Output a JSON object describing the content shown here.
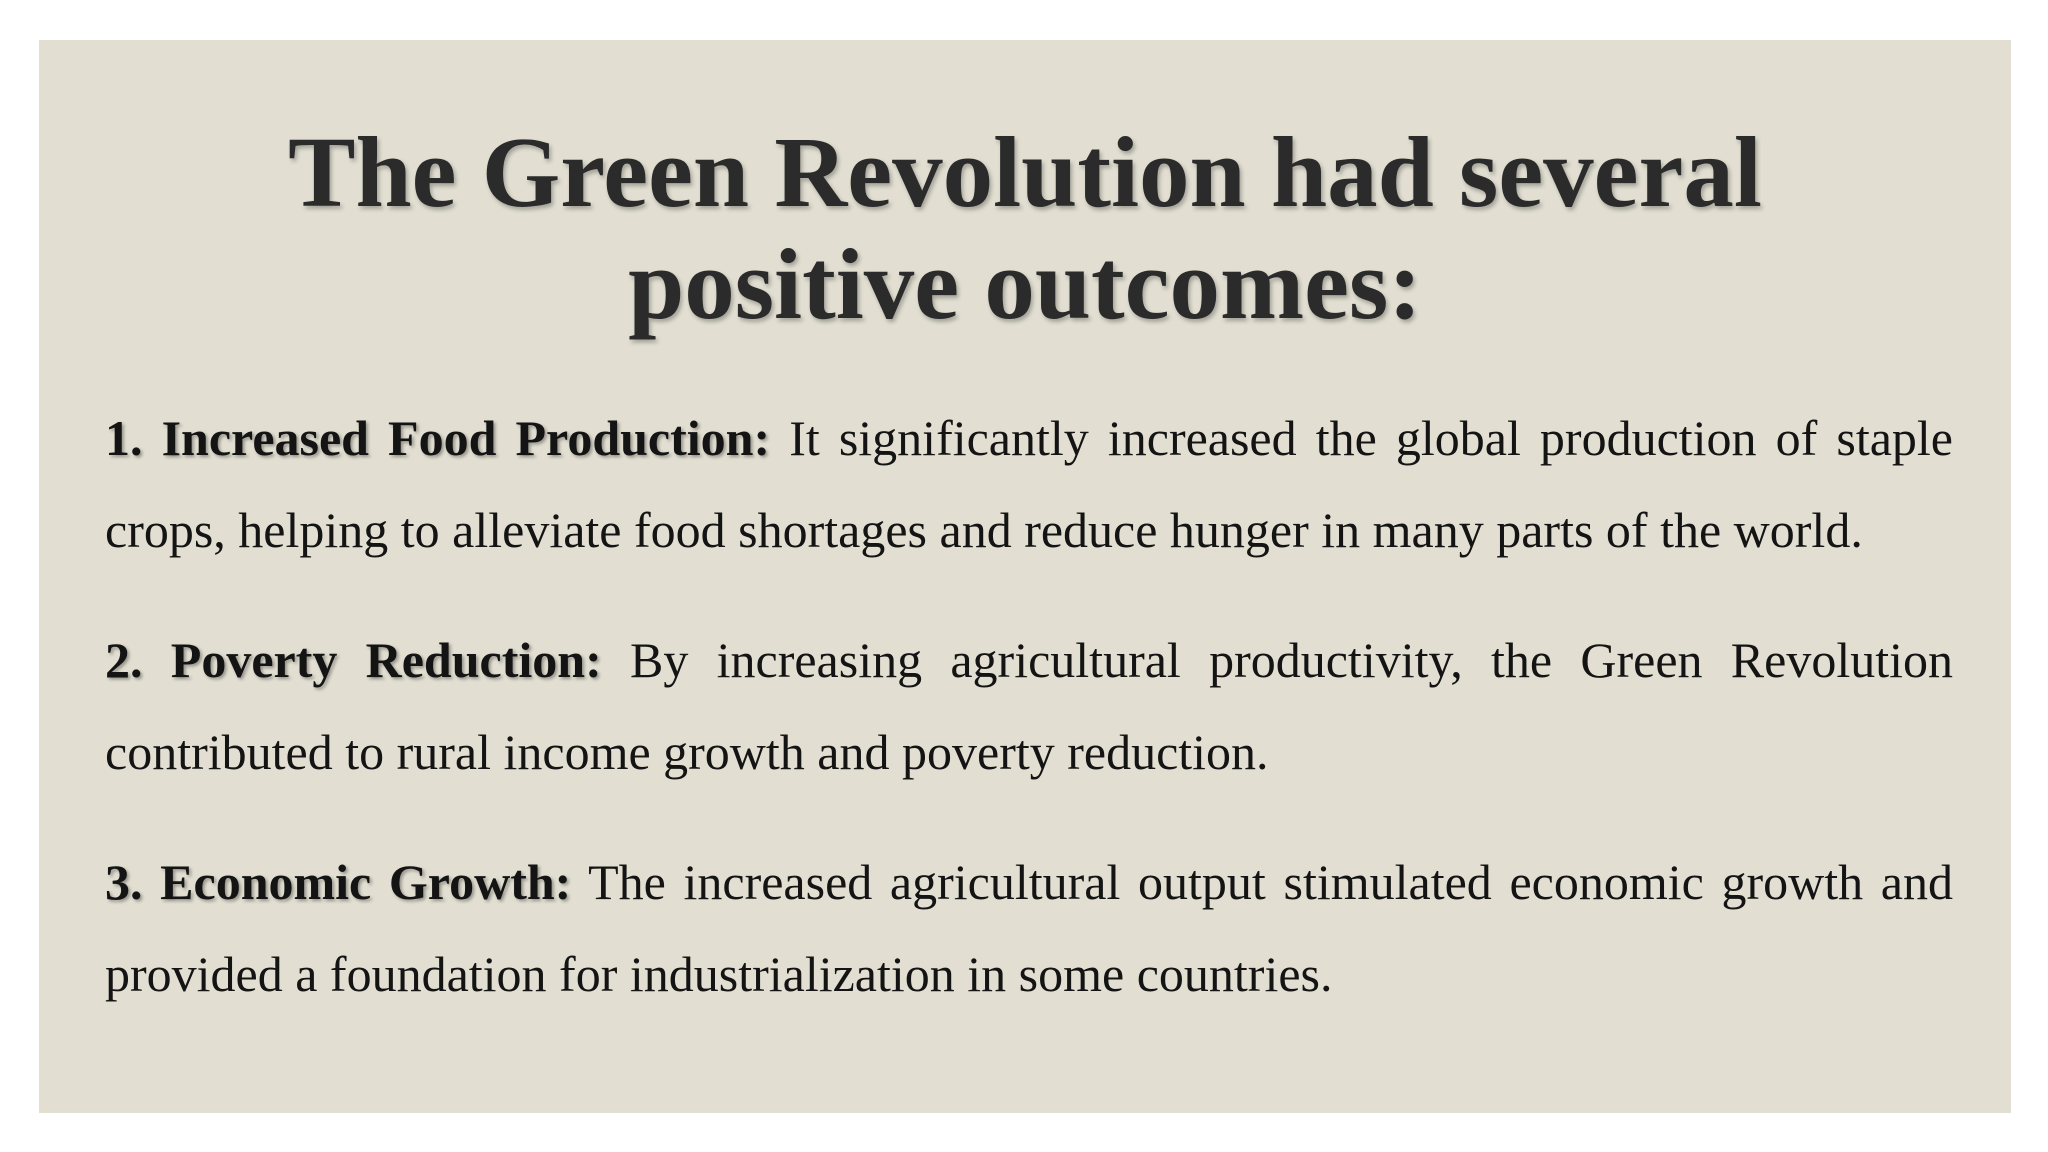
{
  "slide": {
    "background_color": "#e2dfd2",
    "title_lines": [
      "The Green Revolution had several",
      "positive outcomes:"
    ],
    "items": [
      {
        "lead": "1. Increased Food Production:",
        "text": " It significantly increased the global production of staple crops, helping to alleviate food shortages and reduce hunger in many parts of the world."
      },
      {
        "lead": "2. Poverty Reduction:",
        "text": " By increasing agricultural productivity, the Green Revolution contributed to rural income growth and poverty reduction."
      },
      {
        "lead": "3. Economic Growth:",
        "text": " The increased agricultural output stimulated economic growth and provided a foundation for industrialization in some countries."
      }
    ]
  }
}
